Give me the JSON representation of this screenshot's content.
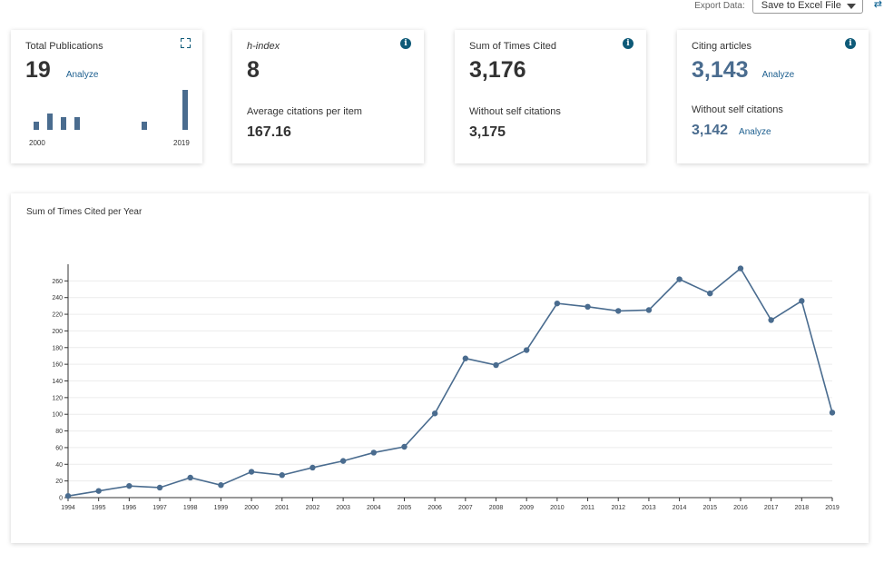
{
  "export": {
    "label": "Export Data:",
    "selected": "Save to Excel File"
  },
  "cards": [
    {
      "label": "Total Publications",
      "value": "19",
      "action": "Analyze",
      "year_start": "2000",
      "year_end": "2019",
      "publications_by_year": [
        1,
        2,
        1.5,
        1.5,
        0,
        0,
        0,
        0,
        1,
        0,
        0,
        4.8
      ]
    },
    {
      "label": "h-index",
      "value": "8",
      "sub_label": "Average citations per item",
      "sub_value": "167.16"
    },
    {
      "label": "Sum of Times Cited",
      "value": "3,176",
      "sub_label": "Without self citations",
      "sub_value": "3,175"
    },
    {
      "label": "Citing articles",
      "value": "3,143",
      "action": "Analyze",
      "sub_label": "Without self citations",
      "sub_value": "3,142",
      "sub_action": "Analyze"
    }
  ],
  "colors": {
    "accent": "#4a6c8f",
    "info": "#0e5a78",
    "link": "#1d5f8f"
  },
  "icons": {
    "info": "info-icon",
    "expand": "expand-icon"
  },
  "chart_data": {
    "type": "line",
    "title": "Sum of Times Cited per Year",
    "x": [
      "1994",
      "1995",
      "1996",
      "1997",
      "1998",
      "1999",
      "2000",
      "2001",
      "2002",
      "2003",
      "2004",
      "2005",
      "2006",
      "2007",
      "2008",
      "2009",
      "2010",
      "2011",
      "2012",
      "2013",
      "2014",
      "2015",
      "2016",
      "2017",
      "2018",
      "2019"
    ],
    "values": [
      2,
      8,
      14,
      12,
      24,
      15,
      31,
      27,
      36,
      44,
      54,
      61,
      101,
      167,
      159,
      177,
      233,
      229,
      224,
      225,
      262,
      245,
      275,
      213,
      236,
      102
    ],
    "ylim": [
      0,
      280
    ],
    "yticks": [
      0,
      20,
      40,
      60,
      80,
      100,
      120,
      140,
      160,
      180,
      200,
      220,
      240,
      260
    ],
    "grid": true,
    "color": "#4a6c8f"
  }
}
